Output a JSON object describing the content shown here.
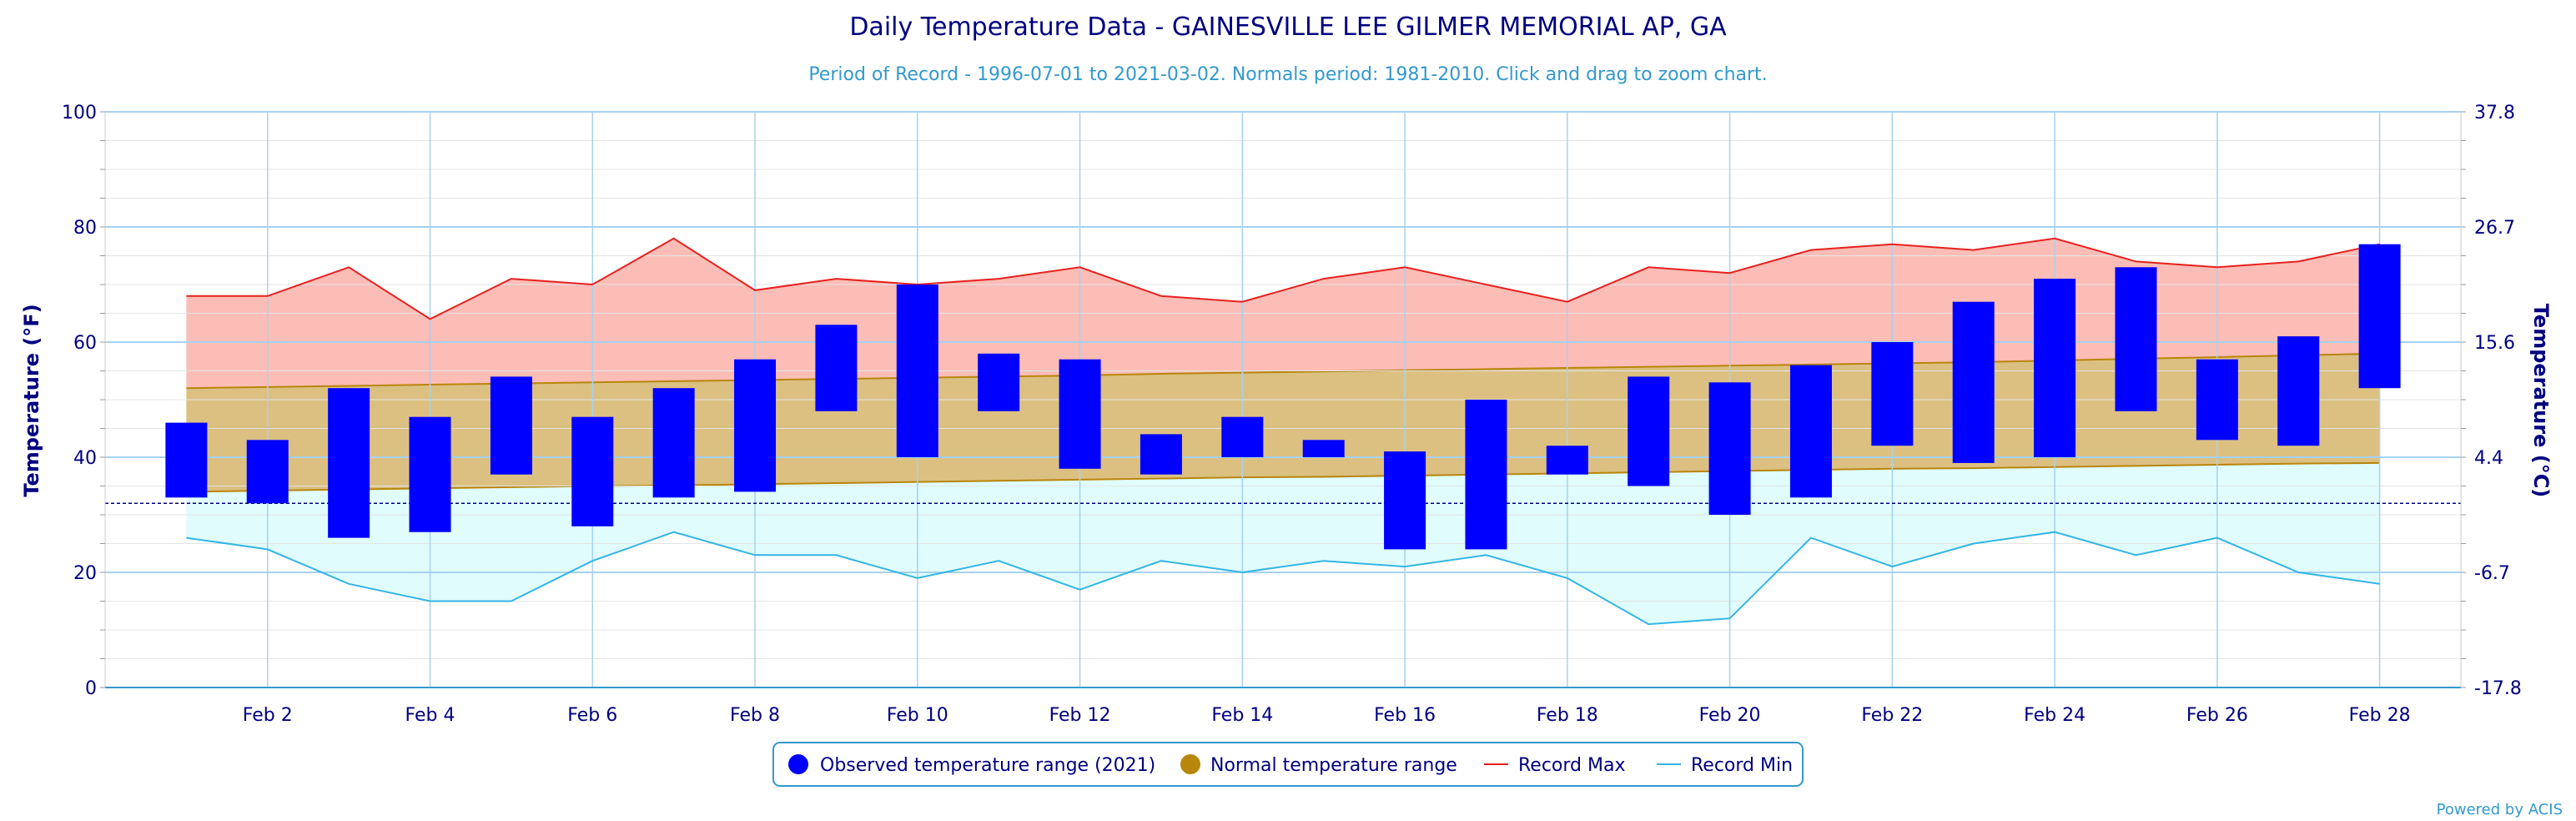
{
  "chart_data": {
    "type": "bar",
    "title": "Daily Temperature Data - GAINESVILLE LEE GILMER MEMORIAL AP, GA",
    "subtitle": "Period of Record - 1996-07-01 to 2021-03-02. Normals period: 1981-2010. Click and drag to zoom chart.",
    "ylabel": "Temperature (°F)",
    "ylabel_right": "Temperature (°C)",
    "ylim": [
      0,
      100
    ],
    "y_ticks": [
      "0",
      "20",
      "40",
      "60",
      "80",
      "100"
    ],
    "y_ticks_right": [
      "-17.8",
      "-6.7",
      "4.4",
      "15.6",
      "26.7",
      "37.8"
    ],
    "x_ticks": [
      "Feb 2",
      "Feb 4",
      "Feb 6",
      "Feb 8",
      "Feb 10",
      "Feb 12",
      "Feb 14",
      "Feb 16",
      "Feb 18",
      "Feb 20",
      "Feb 22",
      "Feb 24",
      "Feb 26",
      "Feb 28"
    ],
    "days": [
      1,
      2,
      3,
      4,
      5,
      6,
      7,
      8,
      9,
      10,
      11,
      12,
      13,
      14,
      15,
      16,
      17,
      18,
      19,
      20,
      21,
      22,
      23,
      24,
      25,
      26,
      27,
      28
    ],
    "freezing_line": 32,
    "grid": true,
    "legend_position": "bottom-center",
    "series": [
      {
        "name": "Observed temperature range (2021)",
        "type": "columnrange",
        "color": "#0000ff",
        "low": [
          33,
          32,
          26,
          27,
          37,
          28,
          33,
          34,
          48,
          40,
          48,
          38,
          37,
          40,
          40,
          24,
          24,
          37,
          35,
          30,
          33,
          42,
          39,
          40,
          48,
          43,
          42,
          52
        ],
        "high": [
          46,
          43,
          52,
          47,
          54,
          47,
          52,
          57,
          63,
          70,
          58,
          57,
          44,
          47,
          43,
          41,
          50,
          42,
          54,
          53,
          56,
          60,
          67,
          71,
          73,
          57,
          61,
          77
        ]
      },
      {
        "name": "Normal temperature range",
        "type": "arearange",
        "color": "#b8860b",
        "low": [
          34,
          34.2,
          34.4,
          34.6,
          34.8,
          35,
          35.1,
          35.3,
          35.5,
          35.7,
          35.9,
          36.1,
          36.3,
          36.5,
          36.6,
          36.8,
          37,
          37.2,
          37.4,
          37.6,
          37.8,
          38,
          38.1,
          38.3,
          38.5,
          38.7,
          38.9,
          39
        ],
        "high": [
          52,
          52.2,
          52.4,
          52.6,
          52.8,
          53,
          53.2,
          53.4,
          53.6,
          53.8,
          54,
          54.2,
          54.5,
          54.7,
          54.9,
          55.1,
          55.3,
          55.5,
          55.7,
          55.9,
          56.1,
          56.3,
          56.5,
          56.8,
          57.1,
          57.4,
          57.7,
          58
        ]
      },
      {
        "name": "Record Max",
        "type": "line",
        "color": "#e8211f",
        "values": [
          68,
          68,
          73,
          64,
          71,
          70,
          78,
          69,
          71,
          70,
          71,
          73,
          68,
          67,
          71,
          73,
          70,
          67,
          73,
          72,
          76,
          77,
          76,
          78,
          74,
          73,
          74,
          77
        ]
      },
      {
        "name": "Record Min",
        "type": "line",
        "color": "#33b5e5",
        "values": [
          26,
          24,
          18,
          15,
          15,
          22,
          27,
          23,
          23,
          19,
          22,
          17,
          22,
          20,
          22,
          21,
          23,
          19,
          11,
          12,
          26,
          21,
          25,
          27,
          23,
          26,
          20,
          18
        ]
      }
    ]
  },
  "legend": {
    "observed": "Observed temperature range (2021)",
    "normal": "Normal temperature range",
    "record_max": "Record Max",
    "record_min": "Record Min"
  },
  "credit": "Powered by ACIS",
  "colors": {
    "observed": "#0000ff",
    "normal_fill": "#dcc082",
    "normal_line": "#b8860b",
    "record_max_fill": "#fbbdb6",
    "record_max_line": "#e8211f",
    "record_min_fill": "#e0fcfc",
    "record_min_line": "#33b5e5",
    "axis_text": "#000080"
  }
}
